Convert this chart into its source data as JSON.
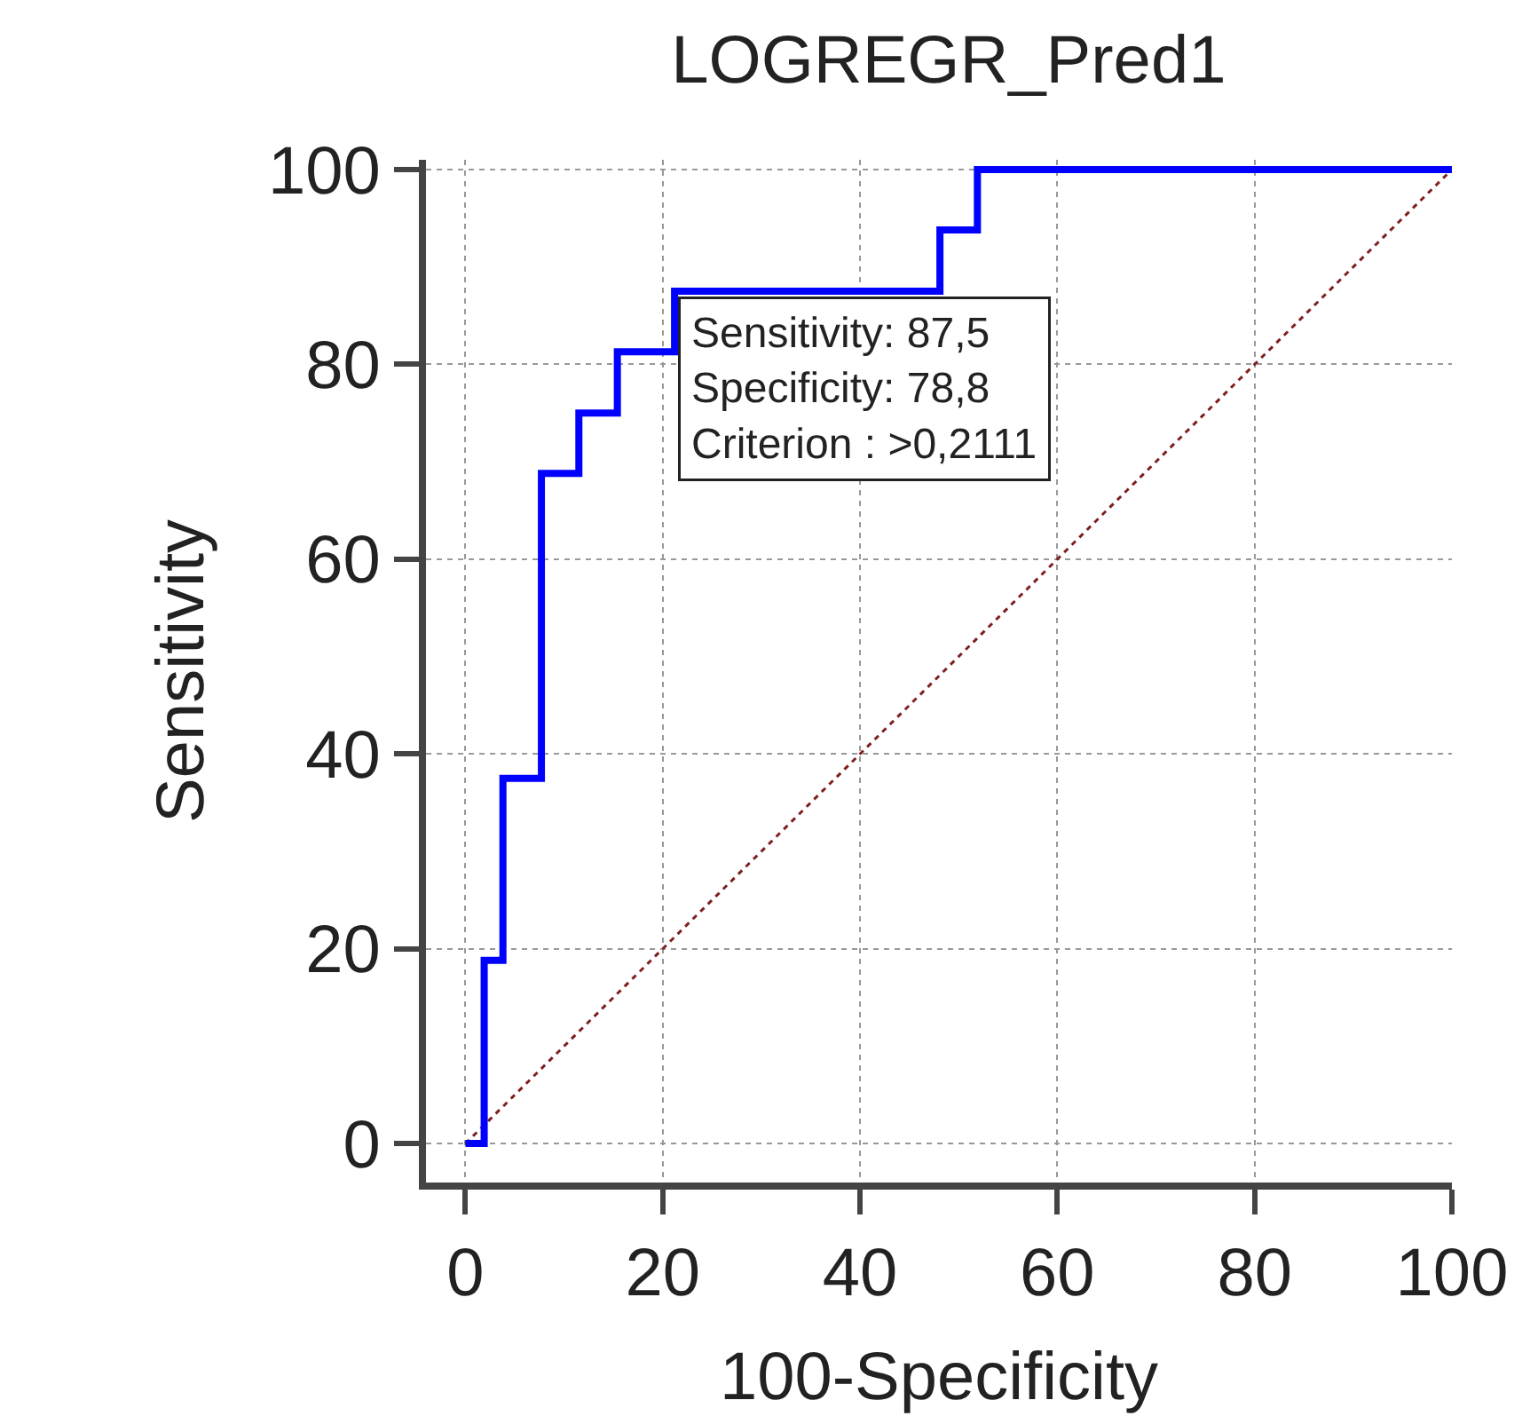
{
  "chart_data": {
    "type": "step",
    "title": "LOGREGR_Pred1",
    "xlabel": "100-Specificity",
    "ylabel": "Sensitivity",
    "series": [
      {
        "color": "#0000ff",
        "x": [
          0,
          1.9,
          1.9,
          3.8,
          3.8,
          7.7,
          7.7,
          11.5,
          11.5,
          15.4,
          15.4,
          21.2,
          21.2,
          48.1,
          48.1,
          51.9,
          51.9,
          100
        ],
        "values": [
          0,
          0,
          18.8,
          18.8,
          37.5,
          37.5,
          68.8,
          68.8,
          75,
          75,
          81.3,
          81.3,
          87.5,
          87.5,
          93.8,
          93.8,
          100,
          100
        ],
        "line_style": "solid"
      },
      {
        "type": "line",
        "color": "#7f1f1f",
        "x": [
          0,
          100
        ],
        "values": [
          0,
          100
        ],
        "line_style": "dotted"
      }
    ],
    "xlim": [
      -4,
      100
    ],
    "ylim": [
      -4,
      101
    ],
    "xticks": [
      0,
      20,
      40,
      60,
      80,
      100
    ],
    "yticks": [
      0,
      20,
      40,
      60,
      80,
      100
    ],
    "grid": true,
    "marker": "none",
    "annotations": [
      {
        "text": "Sensitivity: 87,5\nSpecificity: 78,8\nCriterion : >0,2111",
        "x": 21.2,
        "y": 87.5
      }
    ]
  }
}
